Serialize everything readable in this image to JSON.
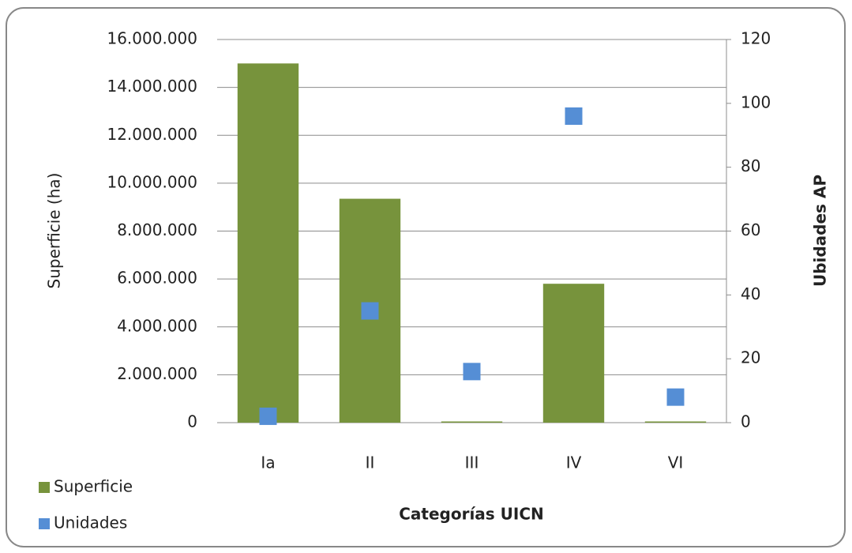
{
  "chart_data": {
    "type": "bar",
    "categories": [
      "Ia",
      "II",
      "III",
      "IV",
      "VI"
    ],
    "series": [
      {
        "name": "Superficie",
        "type": "bar",
        "axis": "y",
        "color": "#77933c",
        "values": [
          15000000,
          9350000,
          50000,
          5800000,
          50000
        ]
      },
      {
        "name": "Unidades",
        "type": "scatter",
        "axis": "y2",
        "color": "#558ed5",
        "values": [
          2,
          35,
          16,
          96,
          8
        ]
      }
    ],
    "x_label": "Categorías UICN",
    "y_label": "Superficie (ha)",
    "y2_label": "Ubidades AP",
    "ylim": [
      0,
      16000000
    ],
    "yticks": [
      0,
      {
        "value": 2000000,
        "label": "2.000.000"
      },
      {
        "value": 4000000,
        "label": "4.000.000"
      },
      {
        "value": 6000000,
        "label": "6.000.000"
      },
      {
        "value": 8000000,
        "label": "8.000.000"
      },
      {
        "value": 10000000,
        "label": "10.000.000"
      },
      {
        "value": 12000000,
        "label": "12.000.000"
      },
      {
        "value": 14000000,
        "label": "14.000.000"
      },
      {
        "value": 16000000,
        "label": "16.000.000"
      }
    ],
    "y2lim": [
      0,
      120
    ],
    "y2ticks": [
      0,
      20,
      40,
      60,
      80,
      100,
      120
    ],
    "grid": true,
    "legend": "bottom-left"
  }
}
